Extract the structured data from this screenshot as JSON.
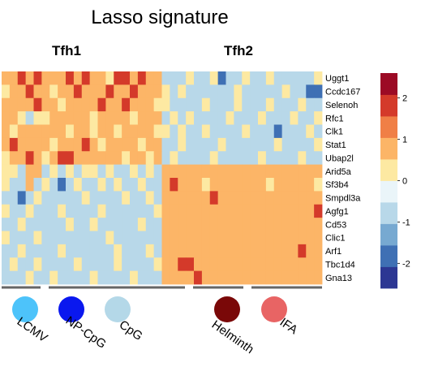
{
  "chart_data": {
    "type": "heatmap",
    "title": "Lasso signature",
    "column_groups": [
      "Tfh1",
      "Tfh2"
    ],
    "rows": [
      "Uggt1",
      "Ccdc167",
      "Selenoh",
      "Rfc1",
      "Clk1",
      "Stat1",
      "Ubap2l",
      "Arid5a",
      "Sf3b4",
      "Smpdl3a",
      "Agfg1",
      "Cd53",
      "Clic1",
      "Arf1",
      "Tbc1d4",
      "Gna13"
    ],
    "colorbar": {
      "ticks": [
        2,
        1,
        0,
        -1,
        -2
      ],
      "range": [
        -2.6,
        2.6
      ],
      "colors": [
        "#2c3793",
        "#3f70b4",
        "#77a9d1",
        "#b8d8e9",
        "#eaf5f9",
        "#fde9a2",
        "#fcb567",
        "#f07f46",
        "#d43a2a",
        "#9c0a25"
      ]
    },
    "conditions": [
      {
        "label": "LCMV",
        "group": "Tfh1",
        "color": "#4dc3fa"
      },
      {
        "label": "NP-CpG",
        "group": "Tfh1",
        "color": "#0a18ef"
      },
      {
        "label": "CpG",
        "group": "Tfh1",
        "color": "#b4d8e8"
      },
      {
        "label": "Helminth",
        "group": "Tfh2",
        "color": "#7a0808"
      },
      {
        "label": "IFA",
        "group": "Tfh2",
        "color": "#e86464"
      }
    ],
    "values": [
      [
        1,
        1,
        2,
        1,
        2,
        1,
        1,
        1,
        2,
        1,
        2,
        1,
        1,
        0,
        2,
        2,
        1,
        2,
        1,
        1,
        -1,
        -1,
        -1,
        0,
        -1,
        -1,
        0,
        -2,
        -1,
        -1,
        0,
        -1,
        -1,
        0,
        -1,
        -1,
        -1,
        -1,
        -1,
        0
      ],
      [
        0,
        1,
        1,
        2,
        1,
        1,
        0,
        1,
        1,
        2,
        1,
        1,
        1,
        2,
        1,
        1,
        2,
        1,
        1,
        1,
        0,
        -1,
        0,
        -1,
        -1,
        -1,
        -1,
        -1,
        -1,
        0,
        -1,
        -1,
        -1,
        -1,
        -1,
        0,
        -1,
        -1,
        -2,
        -2
      ],
      [
        1,
        1,
        1,
        1,
        2,
        1,
        1,
        0,
        1,
        1,
        1,
        1,
        2,
        1,
        1,
        2,
        1,
        1,
        1,
        0,
        0,
        -1,
        -1,
        -1,
        -1,
        0,
        -1,
        -1,
        -1,
        0,
        -1,
        -1,
        -1,
        0,
        -1,
        -1,
        -1,
        0,
        -1,
        -1
      ],
      [
        1,
        1,
        0,
        -1,
        0,
        0,
        1,
        1,
        1,
        1,
        1,
        0,
        1,
        1,
        1,
        1,
        0,
        1,
        1,
        1,
        -1,
        0,
        -1,
        0,
        -1,
        -1,
        -1,
        -1,
        0,
        -1,
        -1,
        -1,
        0,
        -1,
        -1,
        -1,
        0,
        -1,
        -1,
        0
      ],
      [
        1,
        0,
        1,
        1,
        1,
        1,
        1,
        1,
        0,
        1,
        1,
        0,
        1,
        1,
        0,
        1,
        1,
        1,
        1,
        0,
        0,
        -1,
        0,
        -1,
        -1,
        0,
        -1,
        -1,
        -1,
        -1,
        0,
        -1,
        -1,
        -1,
        -2,
        -1,
        -1,
        -1,
        0,
        -1
      ],
      [
        1,
        2,
        1,
        1,
        1,
        1,
        0,
        1,
        1,
        1,
        2,
        1,
        0,
        1,
        1,
        1,
        1,
        0,
        1,
        1,
        -1,
        -1,
        0,
        -1,
        -1,
        -1,
        -1,
        0,
        -1,
        -1,
        -1,
        -1,
        -1,
        -1,
        0,
        -1,
        -1,
        -1,
        -1,
        0
      ],
      [
        0,
        1,
        1,
        2,
        1,
        0,
        1,
        2,
        2,
        1,
        1,
        1,
        1,
        1,
        1,
        0,
        1,
        1,
        0,
        1,
        -1,
        0,
        -1,
        -1,
        -1,
        -1,
        0,
        -1,
        -1,
        -1,
        -1,
        -1,
        0,
        -1,
        -1,
        -1,
        -1,
        0,
        -1,
        -1
      ],
      [
        0,
        0,
        -1,
        1,
        1,
        -1,
        0,
        -1,
        0,
        -1,
        0,
        0,
        -1,
        0,
        -1,
        -1,
        0,
        -1,
        0,
        -1,
        1,
        1,
        1,
        1,
        1,
        1,
        1,
        1,
        1,
        1,
        1,
        1,
        1,
        1,
        1,
        1,
        1,
        1,
        1,
        1
      ],
      [
        0,
        -1,
        -1,
        1,
        -1,
        0,
        -1,
        -2,
        -1,
        0,
        -1,
        -1,
        0,
        -1,
        0,
        -1,
        -1,
        0,
        -1,
        -1,
        1,
        2,
        1,
        1,
        1,
        0,
        1,
        1,
        1,
        1,
        1,
        1,
        1,
        0,
        1,
        1,
        1,
        1,
        1,
        0
      ],
      [
        -1,
        -1,
        -2,
        -1,
        0,
        -1,
        -1,
        -1,
        -1,
        -1,
        0,
        -1,
        -1,
        -1,
        -1,
        0,
        -1,
        -1,
        0,
        -1,
        1,
        1,
        1,
        1,
        1,
        1,
        2,
        1,
        1,
        1,
        1,
        1,
        1,
        1,
        1,
        1,
        1,
        1,
        1,
        1
      ],
      [
        0,
        -1,
        -1,
        0,
        -1,
        -1,
        -1,
        0,
        -1,
        -1,
        -1,
        -1,
        0,
        -1,
        -1,
        -1,
        -1,
        -1,
        -1,
        0,
        1,
        1,
        1,
        1,
        1,
        1,
        1,
        1,
        1,
        1,
        1,
        1,
        1,
        1,
        1,
        1,
        1,
        1,
        1,
        2
      ],
      [
        -1,
        -1,
        0,
        -1,
        -1,
        -1,
        -1,
        -1,
        0,
        -1,
        -1,
        0,
        -1,
        -1,
        -1,
        -1,
        -1,
        0,
        -1,
        -1,
        1,
        1,
        1,
        1,
        1,
        1,
        1,
        1,
        1,
        1,
        1,
        1,
        1,
        1,
        1,
        1,
        1,
        1,
        1,
        1
      ],
      [
        0,
        -1,
        -1,
        -1,
        0,
        -1,
        -1,
        -1,
        -1,
        -1,
        -1,
        -1,
        -1,
        0,
        -1,
        -1,
        -1,
        -1,
        -1,
        -1,
        1,
        1,
        1,
        1,
        1,
        1,
        1,
        1,
        1,
        1,
        1,
        1,
        1,
        1,
        1,
        1,
        1,
        1,
        1,
        1
      ],
      [
        -1,
        -1,
        0,
        -1,
        -1,
        -1,
        -1,
        0,
        -1,
        -1,
        -1,
        -1,
        -1,
        -1,
        0,
        -1,
        -1,
        -1,
        0,
        -1,
        1,
        1,
        1,
        1,
        1,
        1,
        1,
        1,
        1,
        1,
        1,
        1,
        1,
        1,
        1,
        1,
        1,
        2,
        1,
        1
      ],
      [
        -1,
        0,
        -1,
        -1,
        0,
        -1,
        -1,
        -1,
        -1,
        0,
        -1,
        -1,
        -1,
        -1,
        0,
        -1,
        -1,
        -1,
        -1,
        0,
        1,
        1,
        2,
        2,
        1,
        1,
        1,
        1,
        1,
        1,
        1,
        1,
        1,
        1,
        1,
        1,
        1,
        1,
        1,
        1
      ],
      [
        -1,
        -1,
        -1,
        0,
        -1,
        -1,
        0,
        -1,
        -1,
        -1,
        -1,
        0,
        -1,
        -1,
        -1,
        -1,
        0,
        -1,
        -1,
        -1,
        1,
        1,
        1,
        1,
        2,
        1,
        1,
        1,
        1,
        1,
        1,
        1,
        1,
        1,
        1,
        1,
        1,
        1,
        1,
        1
      ]
    ]
  }
}
